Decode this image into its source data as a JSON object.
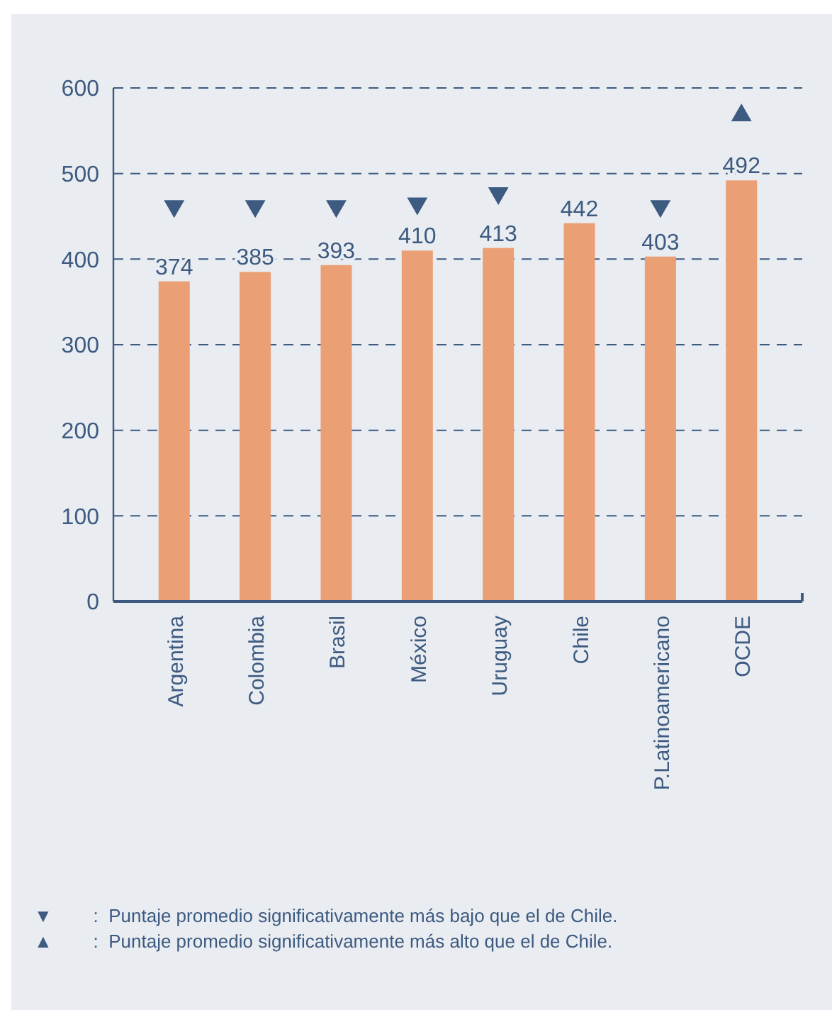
{
  "chart_data": {
    "type": "bar",
    "categories": [
      "Argentina",
      "Colombia",
      "Brasil",
      "México",
      "Uruguay",
      "Chile",
      "P.Latinoamericano",
      "OCDE"
    ],
    "series": [
      {
        "color": "#eb9f74",
        "values": [
          374,
          385,
          393,
          410,
          413,
          442,
          403,
          492
        ],
        "value_labels": [
          "374",
          "385",
          "393",
          "410",
          "413",
          "442",
          "403",
          "492"
        ]
      },
      {
        "type": "scatter",
        "color": "#3d5a80",
        "marker": "triangle-down",
        "x": [
          "Argentina",
          "Colombia",
          "Brasil",
          "México",
          "Uruguay",
          "P.Latinoamericano"
        ],
        "values": [
          462,
          462,
          462,
          465,
          477,
          462
        ]
      },
      {
        "type": "scatter",
        "color": "#3d5a80",
        "marker": "triangle",
        "x": [
          "OCDE"
        ],
        "values": [
          568
        ]
      }
    ],
    "ylim": [
      0,
      600
    ],
    "yticks": [
      0,
      100,
      200,
      300,
      400,
      500,
      600
    ],
    "grid": "y",
    "annotations": [
      "▼        :  Puntaje promedio significativamente más bajo que el de Chile.",
      "▲        :  Puntaje promedio significativamente más alto que el de Chile."
    ]
  }
}
